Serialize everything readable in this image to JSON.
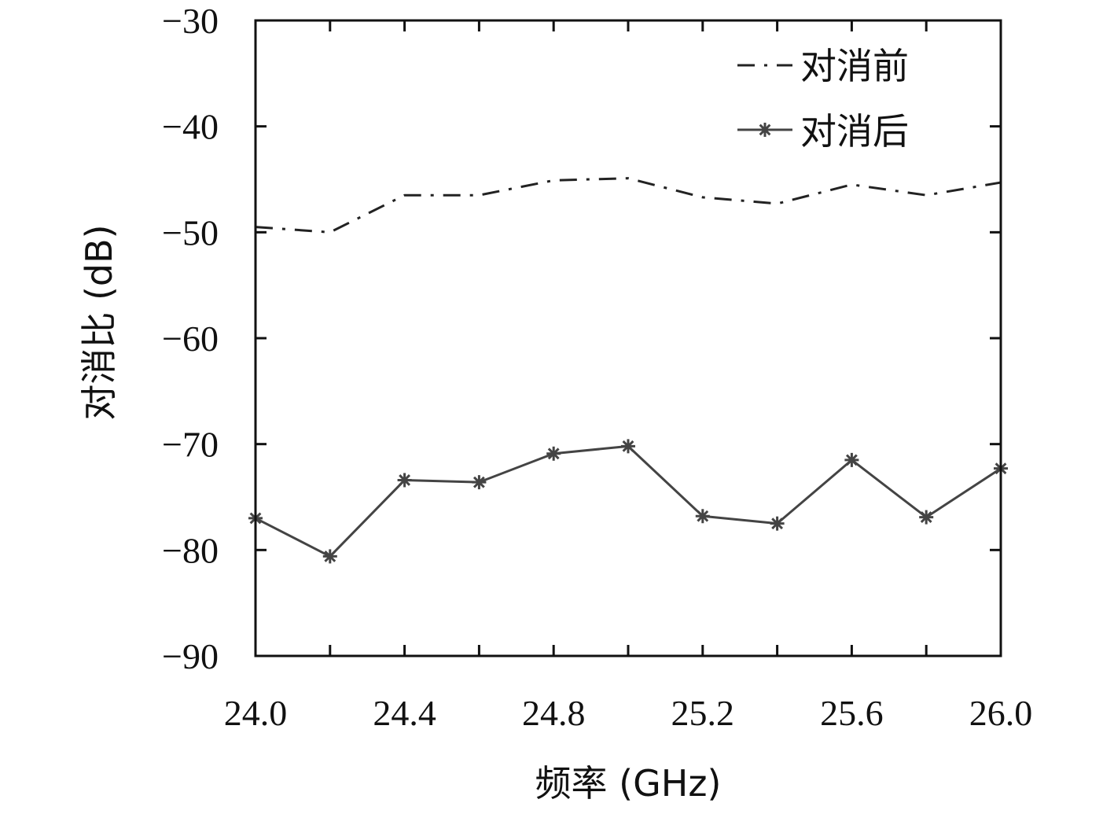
{
  "chart_data": {
    "type": "line",
    "xlabel": "频率 (GHz)",
    "ylabel": "对消比 (dB)",
    "xlim": [
      24.0,
      26.0
    ],
    "ylim": [
      -90,
      -30
    ],
    "x_ticks": [
      "24.0",
      "24.4",
      "24.8",
      "25.2",
      "25.6",
      "26.0"
    ],
    "y_ticks": [
      "−30",
      "−40",
      "−50",
      "−60",
      "−70",
      "−80",
      "−90"
    ],
    "x": [
      24.0,
      24.2,
      24.4,
      24.6,
      24.8,
      25.0,
      25.2,
      25.4,
      25.6,
      25.8,
      26.0
    ],
    "series": [
      {
        "name": "对消前",
        "style": "dashdot",
        "color": "#222222",
        "values": [
          -49.5,
          -50.0,
          -46.5,
          -46.5,
          -45.1,
          -44.9,
          -46.7,
          -47.3,
          -45.5,
          -46.5,
          -45.3
        ]
      },
      {
        "name": "对消后",
        "style": "solid-star",
        "color": "#444444",
        "values": [
          -77.0,
          -80.6,
          -73.4,
          -73.6,
          -70.9,
          -70.2,
          -76.8,
          -77.5,
          -71.5,
          -76.9,
          -72.3
        ]
      }
    ],
    "grid": false,
    "legend_position": "top-right"
  }
}
